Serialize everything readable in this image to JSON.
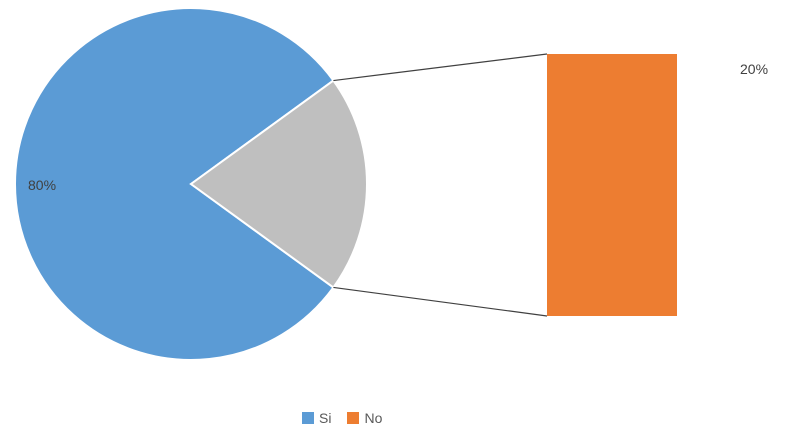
{
  "chart_data": {
    "type": "pie",
    "subtype": "bar-of-pie",
    "categories": [
      "Si",
      "No"
    ],
    "values": [
      80,
      20
    ],
    "data_labels": [
      "80%",
      "20%"
    ],
    "colors": {
      "Si": "#5B9BD5",
      "No": "#ED7D31",
      "other_wedge": "#BFBFBF",
      "connector": "#404040"
    },
    "legend": {
      "position": "bottom",
      "items": [
        {
          "label": "Si",
          "color": "#5B9BD5"
        },
        {
          "label": "No",
          "color": "#ED7D31"
        }
      ]
    }
  }
}
